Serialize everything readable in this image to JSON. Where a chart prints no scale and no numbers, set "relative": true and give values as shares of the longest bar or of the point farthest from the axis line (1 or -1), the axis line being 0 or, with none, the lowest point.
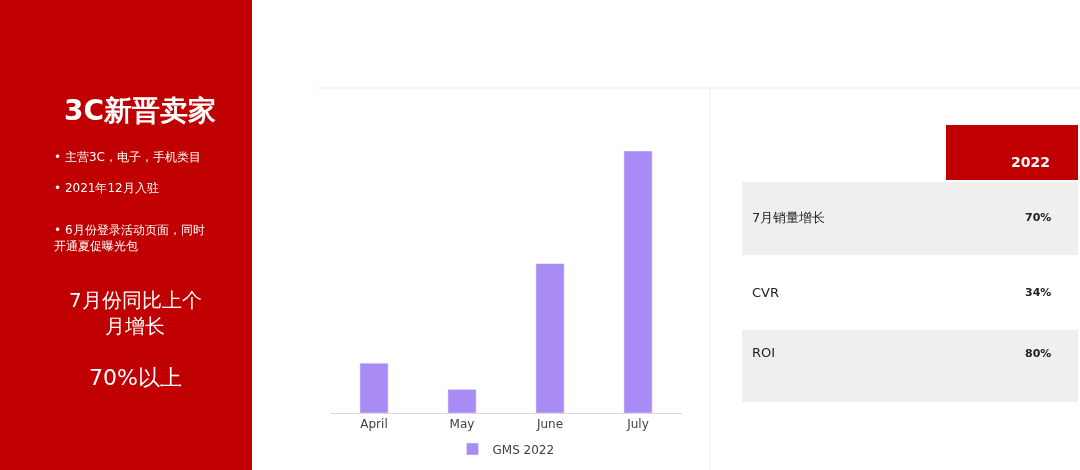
{
  "chart_data": [
    {
      "type": "other",
      "title": "3C新晋卖家",
      "annotations": [
        "• 主营3C，电子，手机类目",
        "• 2021年12月入驻",
        "• 6月份登录活动页面，同时开通夏促曝光包",
        "7月份同比上个月增长",
        "70%以上"
      ]
    },
    {
      "type": "bar",
      "relative": true,
      "categories": [
        "April",
        "May",
        "June",
        "July"
      ],
      "series": [
        {
          "name": "GMS 2022",
          "color": "#a88bf5",
          "values": [
            0.19,
            0.09,
            0.57,
            1
          ]
        }
      ],
      "legend": "bottom"
    },
    {
      "type": "other",
      "annotations": [
        "2022",
        "7月销量增长",
        "70%",
        "CVR",
        "34%",
        "ROI",
        "80%"
      ]
    }
  ]
}
